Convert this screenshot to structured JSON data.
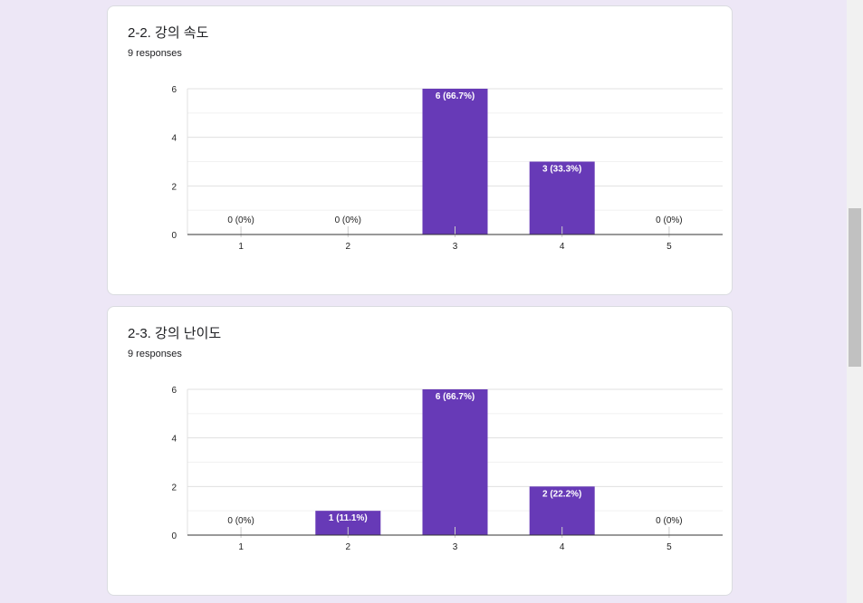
{
  "colors": {
    "bar": "#673ab7",
    "background": "#ede7f6",
    "card": "#ffffff"
  },
  "cards": [
    {
      "title": "2-2. 강의 속도",
      "responses": "9 responses"
    },
    {
      "title": "2-3. 강의 난이도",
      "responses": "9 responses"
    }
  ],
  "chart_data": [
    {
      "type": "bar",
      "title": "2-2. 강의 속도",
      "categories": [
        "1",
        "2",
        "3",
        "4",
        "5"
      ],
      "values": [
        0,
        0,
        6,
        3,
        0
      ],
      "data_labels": [
        "0 (0%)",
        "0 (0%)",
        "6 (66.7%)",
        "3 (33.3%)",
        "0 (0%)"
      ],
      "yticks": [
        "0",
        "2",
        "4",
        "6"
      ],
      "ylim": [
        0,
        6
      ],
      "grid": true
    },
    {
      "type": "bar",
      "title": "2-3. 강의 난이도",
      "categories": [
        "1",
        "2",
        "3",
        "4",
        "5"
      ],
      "values": [
        0,
        1,
        6,
        2,
        0
      ],
      "data_labels": [
        "0 (0%)",
        "1 (11.1%)",
        "6 (66.7%)",
        "2 (22.2%)",
        "0 (0%)"
      ],
      "yticks": [
        "0",
        "2",
        "4",
        "6"
      ],
      "ylim": [
        0,
        6
      ],
      "grid": true
    }
  ]
}
